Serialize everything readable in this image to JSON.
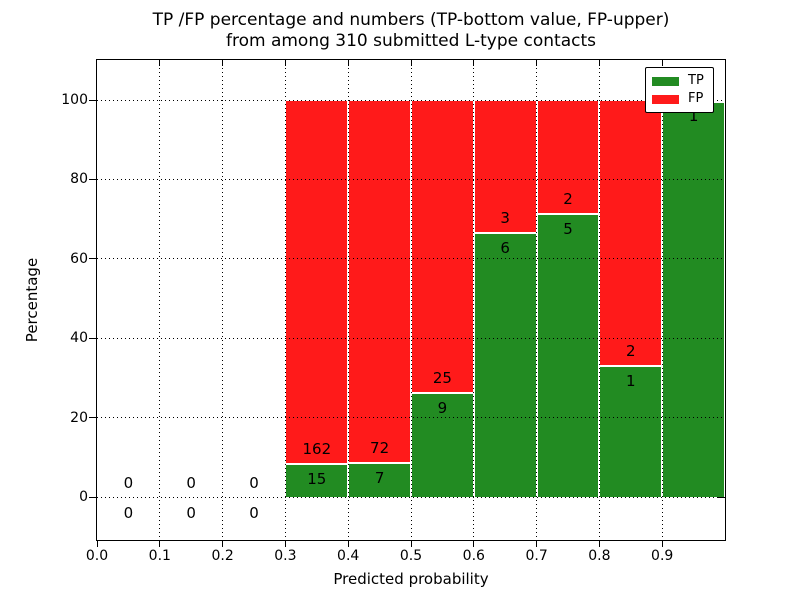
{
  "title": {
    "line1": "TP /FP percentage and numbers (TP-bottom value, FP-upper)",
    "line2": "from among 310 submitted L-type contacts"
  },
  "axes": {
    "xlabel": "Predicted probability",
    "ylabel": "Percentage",
    "x_tick_labels": [
      "0.0",
      "0.1",
      "0.2",
      "0.3",
      "0.4",
      "0.5",
      "0.6",
      "0.7",
      "0.8",
      "0.9"
    ],
    "x_tick_values": [
      0.0,
      0.1,
      0.2,
      0.3,
      0.4,
      0.5,
      0.6,
      0.7,
      0.8,
      0.9
    ],
    "y_tick_labels": [
      "0",
      "20",
      "40",
      "60",
      "80",
      "100"
    ],
    "y_tick_values": [
      0,
      20,
      40,
      60,
      80,
      100
    ],
    "x_range": [
      0.0,
      1.0
    ],
    "y_range": [
      -11,
      110
    ],
    "grid": "dotted"
  },
  "legend": {
    "position": "upper right",
    "items": [
      {
        "label": "TP",
        "color": "#228b22"
      },
      {
        "label": "FP",
        "color": "#ff1a1a"
      }
    ]
  },
  "chart_data": {
    "type": "bar",
    "stacked": true,
    "normalized_to_percent": 100,
    "total_submitted": 310,
    "bin_edges": [
      0.0,
      0.1,
      0.2,
      0.3,
      0.4,
      0.5,
      0.6,
      0.7,
      0.8,
      0.9,
      1.0
    ],
    "series": [
      {
        "name": "TP",
        "color": "#228b22",
        "counts": [
          0,
          0,
          0,
          15,
          7,
          9,
          6,
          5,
          1,
          1
        ]
      },
      {
        "name": "FP",
        "color": "#ff1a1a",
        "counts": [
          0,
          0,
          0,
          162,
          72,
          25,
          3,
          2,
          2,
          0
        ]
      }
    ],
    "tp_percent_of_bin": [
      null,
      null,
      null,
      8.47,
      8.86,
      26.47,
      66.67,
      71.43,
      33.33,
      100
    ],
    "visible_labels": {
      "fp_above": [
        "0",
        "0",
        "0",
        "162",
        "72",
        "25",
        "3",
        "2",
        "2",
        ""
      ],
      "tp_below": [
        "0",
        "0",
        "0",
        "15",
        "7",
        "9",
        "6",
        "5",
        "1",
        "1"
      ]
    }
  },
  "colors": {
    "tp": "#228b22",
    "fp": "#ff1a1a",
    "grid": "#000000",
    "bar_edge": "#ffffff",
    "background": "#ffffff",
    "frame": "#000000"
  }
}
